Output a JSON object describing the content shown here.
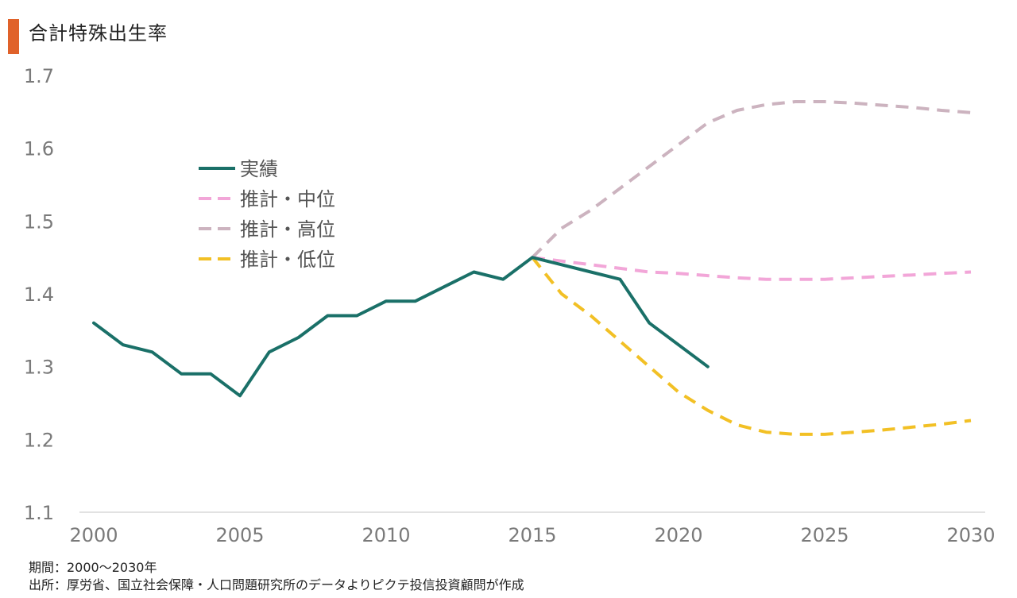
{
  "title": "合計特殊出生率",
  "footer": {
    "period": "期間：2000～2030年",
    "source": "出所：厚労省、国立社会保障・人口問題研究所のデータよりピクテ投信投資顧問が作成"
  },
  "colors": {
    "accent": "#e0622a",
    "actual": "#1a7068",
    "medium": "#f2a6d8",
    "high": "#ccb3bf",
    "low": "#f2c025",
    "axis": "#d9d9d9"
  },
  "chart_data": {
    "type": "line",
    "title": "合計特殊出生率",
    "xlabel": "",
    "ylabel": "",
    "xlim": [
      2000,
      2030
    ],
    "ylim": [
      1.1,
      1.7
    ],
    "xticks": [
      2000,
      2005,
      2010,
      2015,
      2020,
      2025,
      2030
    ],
    "yticks": [
      1.1,
      1.2,
      1.3,
      1.4,
      1.5,
      1.6,
      1.7
    ],
    "xtick_labels": [
      "2000",
      "2005",
      "2010",
      "2015",
      "2020",
      "2025",
      "2030"
    ],
    "ytick_labels": [
      "1.1",
      "1.2",
      "1.3",
      "1.4",
      "1.5",
      "1.6",
      "1.7"
    ],
    "legend_position": "upper-left-inside",
    "series": [
      {
        "key": "actual",
        "name": "実績",
        "style": "solid",
        "x": [
          2000,
          2001,
          2002,
          2003,
          2004,
          2005,
          2006,
          2007,
          2008,
          2009,
          2010,
          2011,
          2012,
          2013,
          2014,
          2015,
          2016,
          2017,
          2018,
          2019,
          2020,
          2021
        ],
        "y": [
          1.36,
          1.33,
          1.32,
          1.29,
          1.29,
          1.26,
          1.32,
          1.34,
          1.37,
          1.37,
          1.39,
          1.39,
          1.41,
          1.43,
          1.42,
          1.45,
          1.44,
          1.43,
          1.42,
          1.36,
          1.33,
          1.3
        ]
      },
      {
        "key": "medium",
        "name": "推計・中位",
        "style": "dashed",
        "x": [
          2015,
          2016,
          2017,
          2018,
          2019,
          2020,
          2021,
          2022,
          2023,
          2024,
          2025,
          2026,
          2027,
          2028,
          2029,
          2030
        ],
        "y": [
          1.45,
          1.445,
          1.44,
          1.435,
          1.43,
          1.428,
          1.425,
          1.422,
          1.42,
          1.42,
          1.42,
          1.422,
          1.424,
          1.426,
          1.428,
          1.43
        ]
      },
      {
        "key": "high",
        "name": "推計・高位",
        "style": "dashed",
        "x": [
          2015,
          2016,
          2017,
          2018,
          2019,
          2020,
          2021,
          2022,
          2023,
          2024,
          2025,
          2026,
          2027,
          2028,
          2029,
          2030
        ],
        "y": [
          1.45,
          1.49,
          1.515,
          1.545,
          1.575,
          1.605,
          1.635,
          1.652,
          1.66,
          1.664,
          1.664,
          1.662,
          1.659,
          1.656,
          1.652,
          1.649
        ]
      },
      {
        "key": "low",
        "name": "推計・低位",
        "style": "dashed",
        "x": [
          2015,
          2016,
          2017,
          2018,
          2019,
          2020,
          2021,
          2022,
          2023,
          2024,
          2025,
          2026,
          2027,
          2028,
          2029,
          2030
        ],
        "y": [
          1.45,
          1.4,
          1.37,
          1.335,
          1.3,
          1.265,
          1.24,
          1.22,
          1.21,
          1.207,
          1.207,
          1.21,
          1.213,
          1.217,
          1.221,
          1.226
        ]
      }
    ]
  }
}
